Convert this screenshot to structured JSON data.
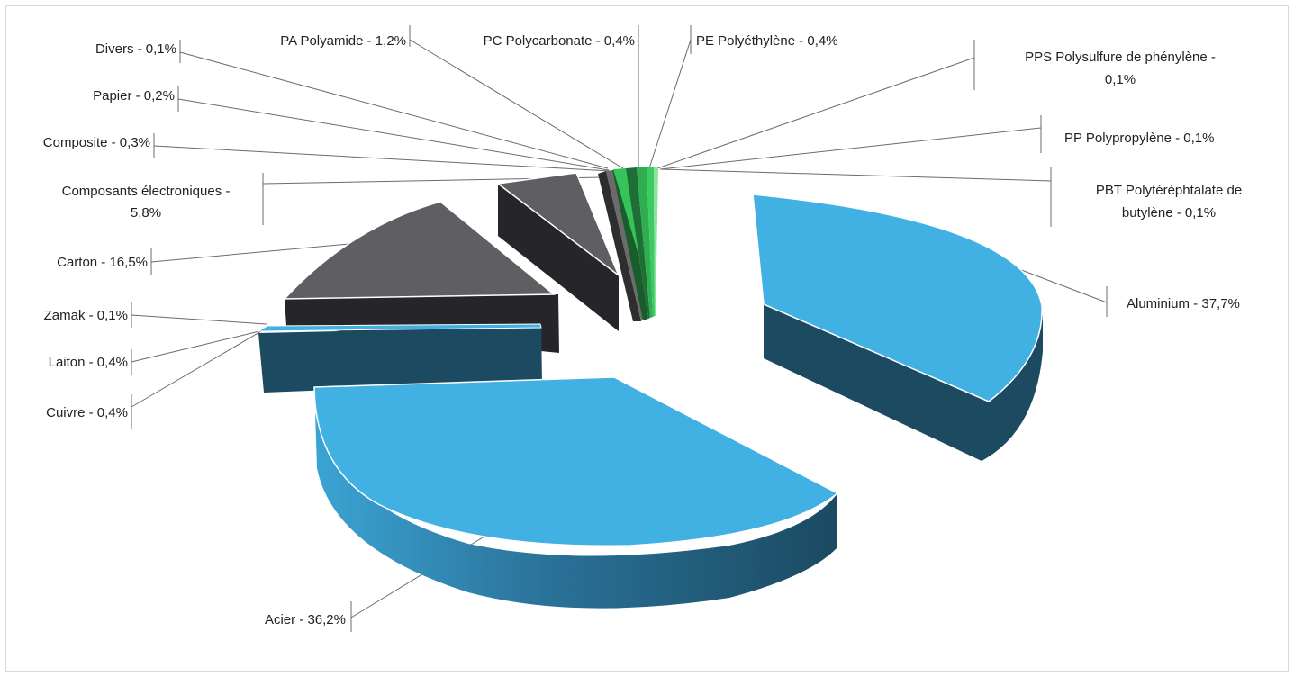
{
  "chart_data": {
    "type": "pie",
    "style": "3d exploded",
    "title": "",
    "legend": "none",
    "slices": [
      {
        "label": "Aluminium - 37,7%",
        "name": "Aluminium",
        "value": 37.7,
        "color": "#41b0e2"
      },
      {
        "label": "Acier - 36,2%",
        "name": "Acier",
        "value": 36.2,
        "color": "#41b0e2"
      },
      {
        "label": "Cuivre - 0,4%",
        "name": "Cuivre",
        "value": 0.4,
        "color": "#41b0e2"
      },
      {
        "label": "Laiton - 0,4%",
        "name": "Laiton",
        "value": 0.4,
        "color": "#41b0e2"
      },
      {
        "label": "Zamak - 0,1%",
        "name": "Zamak",
        "value": 0.1,
        "color": "#41b0e2"
      },
      {
        "label": "Carton - 16,5%",
        "name": "Carton",
        "value": 16.5,
        "color": "#5f5f63"
      },
      {
        "label": "Composants électroniques - 5,8%",
        "name": "Composants électroniques",
        "value": 5.8,
        "color": "#5f5f63"
      },
      {
        "label": "Composite - 0,3%",
        "name": "Composite",
        "value": 0.3,
        "color": "#6b6b6b"
      },
      {
        "label": "Papier - 0,2%",
        "name": "Papier",
        "value": 0.2,
        "color": "#8a8a8a"
      },
      {
        "label": "Divers - 0,1%",
        "name": "Divers",
        "value": 0.1,
        "color": "#a0a0a0"
      },
      {
        "label": "PA Polyamide - 1,2%",
        "name": "PA Polyamide",
        "value": 1.2,
        "color": "#35c35a"
      },
      {
        "label": "PC Polycarbonate - 0,4%",
        "name": "PC Polycarbonate",
        "value": 0.4,
        "color": "#2fae4f"
      },
      {
        "label": "PE Polyéthylène - 0,4%",
        "name": "PE Polyéthylène",
        "value": 0.4,
        "color": "#3ccb62"
      },
      {
        "label": "PPS Polysulfure de phénylène - 0,1%",
        "name": "PPS Polysulfure de phénylène",
        "value": 0.1,
        "color": "#56d676"
      },
      {
        "label": "PP Polypropylène - 0,1%",
        "name": "PP Polypropylène",
        "value": 0.1,
        "color": "#6fdc8a"
      },
      {
        "label": "PBT Polytéréphtalate de butylène - 0,1%",
        "name": "PBT Polytéréphtalate de butylène",
        "value": 0.1,
        "color": "#8ae39e"
      }
    ]
  },
  "labels": {
    "aluminium": "Aluminium - 37,7%",
    "acier": "Acier - 36,2%",
    "cuivre": "Cuivre - 0,4%",
    "laiton": "Laiton - 0,4%",
    "zamak": "Zamak - 0,1%",
    "carton": "Carton - 16,5%",
    "composants_l1": "Composants électroniques -",
    "composants_l2": "5,8%",
    "composite": "Composite - 0,3%",
    "papier": "Papier - 0,2%",
    "divers": "Divers - 0,1%",
    "pa": "PA Polyamide - 1,2%",
    "pc": "PC Polycarbonate - 0,4%",
    "pe": "PE Polyéthylène - 0,4%",
    "pps_l1": "PPS Polysulfure de phénylène -",
    "pps_l2": "0,1%",
    "pp": "PP Polypropylène - 0,1%",
    "pbt_l1": "PBT Polytéréphtalate de",
    "pbt_l2": "butylène - 0,1%"
  }
}
